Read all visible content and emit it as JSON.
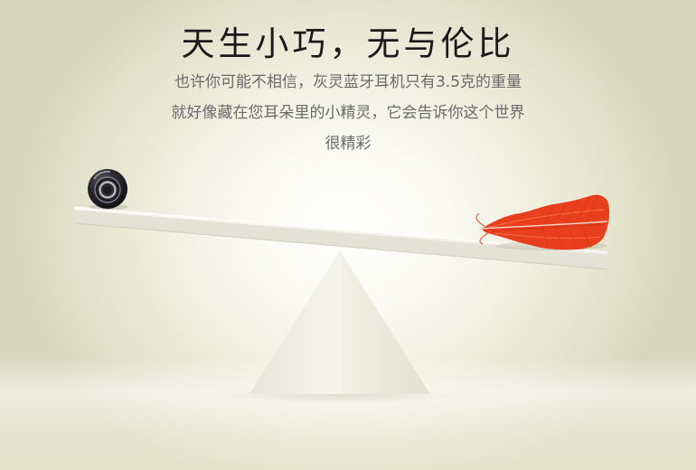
{
  "headline": "天生小巧，无与伦比",
  "description": {
    "lines": [
      "也许你可能不相信，灰灵蓝牙耳机只有3.5克的重量",
      "就好像藏在您耳朵里的小精灵，它会告诉你这个世界",
      "很精彩"
    ]
  },
  "colors": {
    "headline": "#1a1a1a",
    "copy": "#6a6a6a",
    "feather": "#e8401e",
    "earbud": "#2a2a2e",
    "beam": "#f4f3ea",
    "fulcrum": "#efeee3"
  },
  "illustration": {
    "subject": "seesaw balance",
    "left_item": "earbud-icon",
    "right_item": "feather-icon"
  }
}
